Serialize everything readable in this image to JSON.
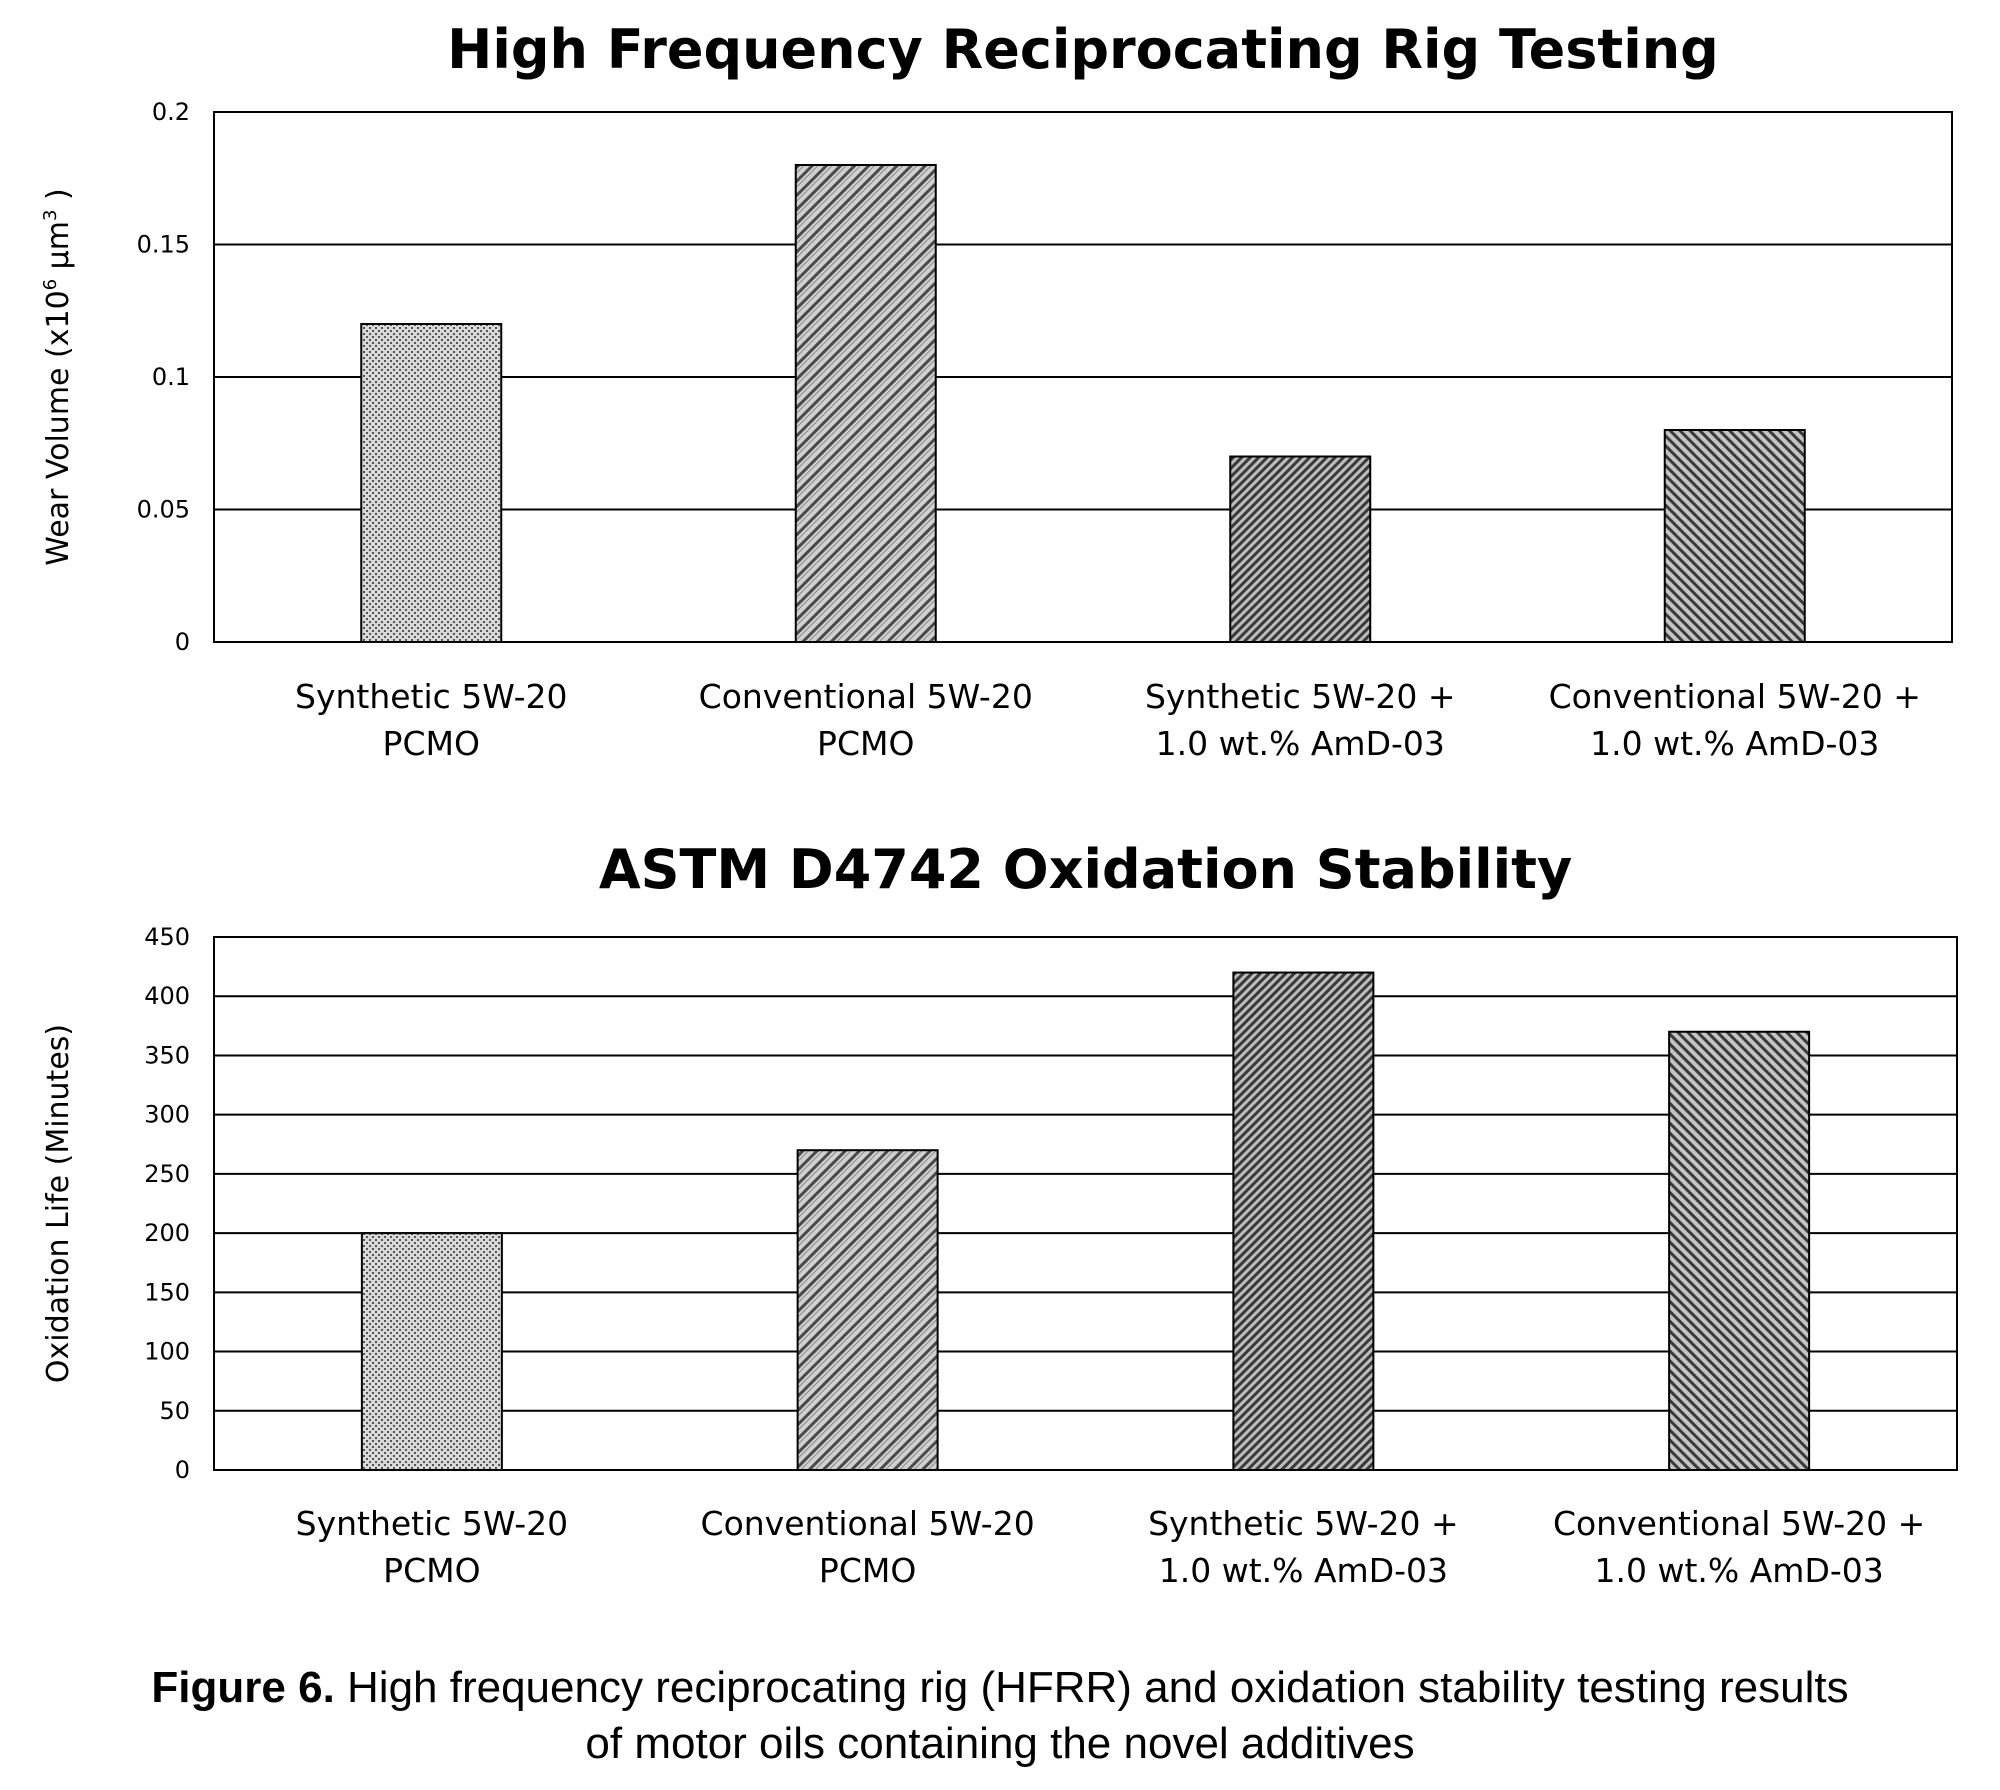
{
  "chart_data": [
    {
      "type": "bar",
      "title": "High Frequency Reciprocating Rig Testing",
      "ylabel_main": "Wear Volume (x10",
      "ylabel_sup": "6",
      "ylabel_mid": " µm",
      "ylabel_sup2": "3",
      "ylabel_end": " )",
      "ylim": [
        0,
        0.2
      ],
      "ticks": [
        "0",
        "0.05",
        "0.1",
        "0.15",
        "0.2"
      ],
      "tick_values": [
        0,
        0.05,
        0.1,
        0.15,
        0.2
      ],
      "grid": true,
      "categories": [
        [
          "Synthetic 5W-20",
          "PCMO"
        ],
        [
          "Conventional 5W-20",
          "PCMO"
        ],
        [
          "Synthetic 5W-20 +",
          "1.0 wt.% AmD-03"
        ],
        [
          "Conventional 5W-20 +",
          "1.0 wt.% AmD-03"
        ]
      ],
      "values": [
        0.12,
        0.18,
        0.07,
        0.08
      ]
    },
    {
      "type": "bar",
      "title": "ASTM D4742 Oxidation Stability",
      "ylabel": "Oxidation Life (Minutes)",
      "ylim": [
        0,
        450
      ],
      "ticks": [
        "0",
        "50",
        "100",
        "150",
        "200",
        "250",
        "300",
        "350",
        "400",
        "450"
      ],
      "tick_values": [
        0,
        50,
        100,
        150,
        200,
        250,
        300,
        350,
        400,
        450
      ],
      "grid": true,
      "categories": [
        [
          "Synthetic 5W-20",
          "PCMO"
        ],
        [
          "Conventional 5W-20",
          "PCMO"
        ],
        [
          "Synthetic 5W-20 +",
          "1.0 wt.% AmD-03"
        ],
        [
          "Conventional 5W-20 +",
          "1.0 wt.% AmD-03"
        ]
      ],
      "values": [
        200,
        270,
        420,
        370
      ]
    }
  ],
  "caption": {
    "label": "Figure 6.",
    "text": " High frequency reciprocating rig (HFRR) and oxidation stability testing results",
    "text2": "of motor oils containing the novel additives"
  }
}
